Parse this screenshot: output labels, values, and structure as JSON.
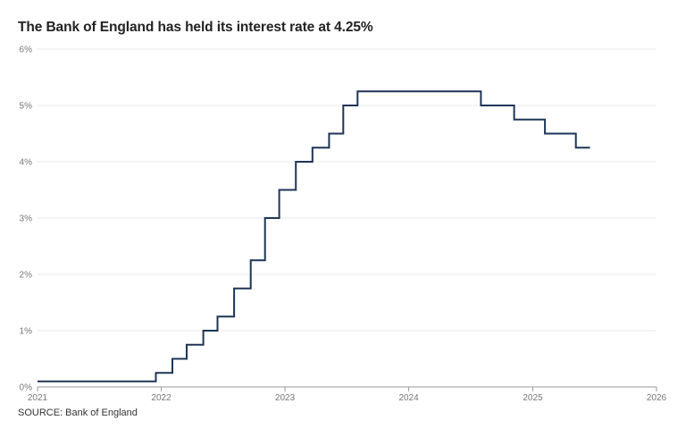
{
  "title": "The Bank of England has held its interest rate at 4.25%",
  "source": "SOURCE: Bank of England",
  "chart_data": {
    "type": "line",
    "step": true,
    "title": "The Bank of England has held its interest rate at 4.25%",
    "xlabel": "",
    "ylabel": "",
    "ylim": [
      0,
      6
    ],
    "xlim": [
      "2021-01-01",
      "2026-01-01"
    ],
    "y_ticks": [
      "0%",
      "1%",
      "2%",
      "3%",
      "4%",
      "5%",
      "6%"
    ],
    "x_ticks": [
      "2021",
      "2022",
      "2023",
      "2024",
      "2025",
      "2026"
    ],
    "grid": true,
    "line_color": "#1d3557",
    "series": [
      {
        "points": [
          [
            "2021-01-01",
            0.1
          ],
          [
            "2021-12-16",
            0.25
          ],
          [
            "2022-02-03",
            0.5
          ],
          [
            "2022-03-17",
            0.75
          ],
          [
            "2022-05-05",
            1.0
          ],
          [
            "2022-06-16",
            1.25
          ],
          [
            "2022-08-04",
            1.75
          ],
          [
            "2022-09-22",
            2.25
          ],
          [
            "2022-11-03",
            3.0
          ],
          [
            "2022-12-15",
            3.5
          ],
          [
            "2023-02-02",
            4.0
          ],
          [
            "2023-03-23",
            4.25
          ],
          [
            "2023-05-11",
            4.5
          ],
          [
            "2023-06-22",
            5.0
          ],
          [
            "2023-08-03",
            5.25
          ],
          [
            "2024-08-01",
            5.0
          ],
          [
            "2024-11-07",
            4.75
          ],
          [
            "2025-02-06",
            4.5
          ],
          [
            "2025-05-08",
            4.25
          ],
          [
            "2025-06-19",
            4.25
          ]
        ]
      }
    ]
  }
}
